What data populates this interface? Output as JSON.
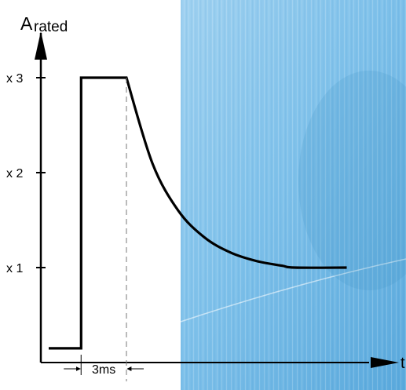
{
  "chart_data": {
    "type": "line",
    "ylabel": "A",
    "ylabel_sub": "rated",
    "xlabel": "t",
    "y_ticks": [
      {
        "value": 1,
        "label": "x 1"
      },
      {
        "value": 2,
        "label": "x 2"
      },
      {
        "value": 3,
        "label": "x 3"
      }
    ],
    "x_annotation": "3ms",
    "series": [
      {
        "values_description_none": "",
        "points": [
          {
            "t": 0.0,
            "a": 0.15
          },
          {
            "t": 1.25,
            "a": 0.15
          },
          {
            "t": 1.25,
            "a": 3.0
          },
          {
            "t": 3.0,
            "a": 3.0
          },
          {
            "t": 4.0,
            "a": 2.1
          },
          {
            "t": 5.0,
            "a": 1.6
          },
          {
            "t": 6.0,
            "a": 1.32
          },
          {
            "t": 7.0,
            "a": 1.16
          },
          {
            "t": 8.0,
            "a": 1.07
          },
          {
            "t": 9.0,
            "a": 1.02
          },
          {
            "t": 9.5,
            "a": 1.0
          },
          {
            "t": 11.5,
            "a": 1.0
          }
        ]
      }
    ],
    "marker_range": [
      1.25,
      3.0
    ],
    "xlim": [
      -0.5,
      13.5
    ],
    "ylim": [
      0,
      3.9
    ],
    "background_panel_color": "#8ec5ea",
    "line_color": "#000000"
  }
}
